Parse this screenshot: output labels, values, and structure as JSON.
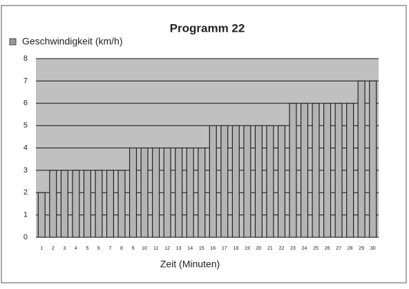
{
  "chart_data": {
    "type": "bar",
    "title": "Programm 22",
    "legend": "Geschwindigkeit (km/h)",
    "xlabel": "Zeit (Minuten)",
    "categories": [
      "1",
      "2",
      "3",
      "4",
      "5",
      "6",
      "7",
      "8",
      "9",
      "10",
      "11",
      "12",
      "13",
      "14",
      "15",
      "16",
      "17",
      "18",
      "19",
      "20",
      "21",
      "22",
      "23",
      "24",
      "25",
      "26",
      "27",
      "28",
      "29",
      "30"
    ],
    "values": [
      2,
      3,
      3,
      3,
      3,
      3,
      3,
      3,
      4,
      4,
      4,
      4,
      4,
      4,
      4,
      5,
      5,
      5,
      5,
      5,
      5,
      5,
      6,
      6,
      6,
      6,
      6,
      6,
      7,
      7
    ],
    "color": "#b4b4b4",
    "ylim": [
      0,
      8
    ],
    "yticks": [
      0,
      1,
      2,
      3,
      4,
      5,
      6,
      7,
      8
    ],
    "grid": true
  }
}
